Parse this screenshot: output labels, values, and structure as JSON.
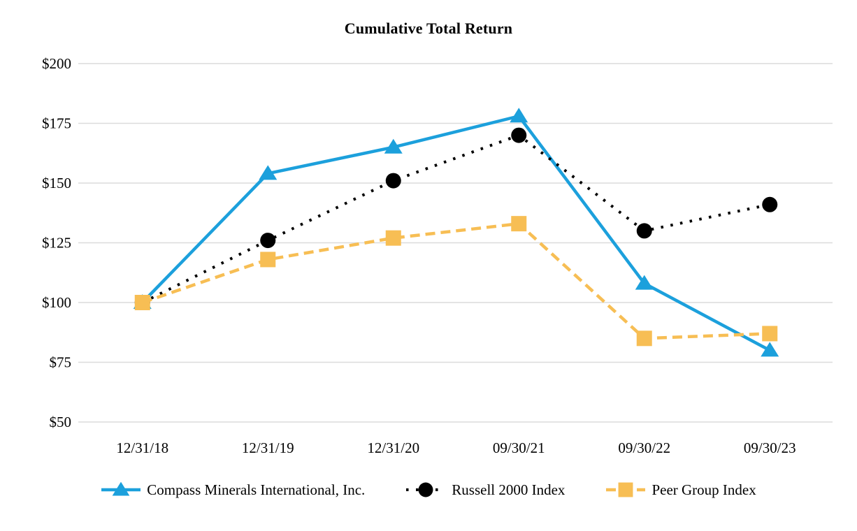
{
  "chart_data": {
    "type": "line",
    "title": "Cumulative Total Return",
    "categories": [
      "12/31/18",
      "12/31/19",
      "12/31/20",
      "09/30/21",
      "09/30/22",
      "09/30/23"
    ],
    "series": [
      {
        "name": "Compass Minerals International, Inc.",
        "color": "#1CA0DC",
        "marker": "triangle",
        "line_style": "solid",
        "values": [
          100,
          154,
          165,
          178,
          108,
          80
        ]
      },
      {
        "name": "Russell 2000 Index",
        "color": "#000000",
        "marker": "circle",
        "line_style": "dotted",
        "values": [
          100,
          126,
          151,
          170,
          130,
          141
        ]
      },
      {
        "name": "Peer Group Index",
        "color": "#F7BE54",
        "marker": "square",
        "line_style": "dashed",
        "values": [
          100,
          118,
          127,
          133,
          85,
          87
        ]
      }
    ],
    "y_ticks": [
      {
        "label": "$200",
        "value": 200
      },
      {
        "label": "$175",
        "value": 175
      },
      {
        "label": "$150",
        "value": 150
      },
      {
        "label": "$125",
        "value": 125
      },
      {
        "label": "$100",
        "value": 100
      },
      {
        "label": "$75",
        "value": 75
      },
      {
        "label": "$50",
        "value": 50
      }
    ],
    "ylim": [
      50,
      200
    ],
    "ytick_prefix": "$",
    "grid": true,
    "grid_color": "#DCDCDC",
    "legend_position": "bottom"
  }
}
